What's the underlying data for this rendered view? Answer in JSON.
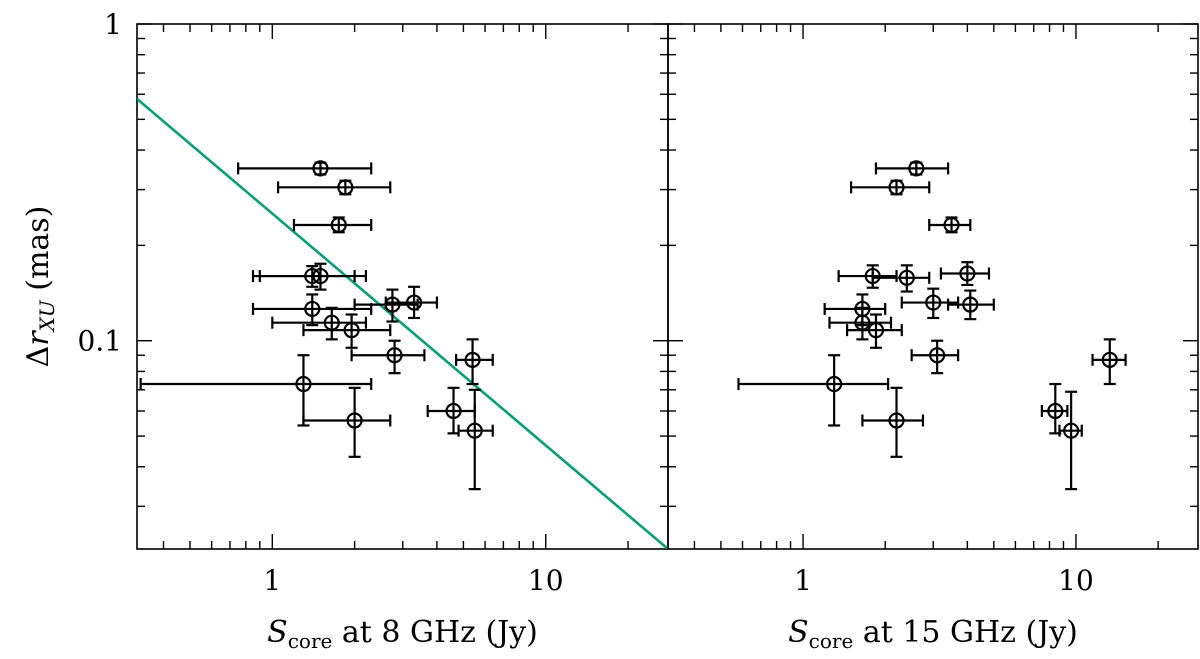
{
  "chart_data": {
    "type": "scatter",
    "yscale": "log",
    "xscale": "log",
    "ylim": [
      0.022,
      1.0
    ],
    "ylabel": {
      "main": "Δr",
      "sub": "XU",
      "unit": " (mas)"
    },
    "yticklabels": [
      {
        "value": 1,
        "label": "1"
      },
      {
        "value": 0.1,
        "label": "0.1"
      }
    ],
    "panels": [
      {
        "xlabel": {
          "main": "S",
          "sub": "core",
          "rest": " at 8 GHz (Jy)"
        },
        "xlim": [
          0.32,
          28
        ],
        "xticklabels": [
          {
            "value": 1,
            "label": "1"
          },
          {
            "value": 10,
            "label": "10"
          }
        ],
        "fit_line": {
          "color": "#0a9e75",
          "x": [
            0.32,
            28
          ],
          "y": [
            0.58,
            0.022
          ]
        },
        "points": [
          {
            "x": 1.5,
            "xlo": 0.75,
            "xhi": 2.3,
            "y": 0.35,
            "ylo": 0.335,
            "yhi": 0.365
          },
          {
            "x": 1.85,
            "xlo": 1.05,
            "xhi": 2.7,
            "y": 0.305,
            "ylo": 0.29,
            "yhi": 0.32
          },
          {
            "x": 1.75,
            "xlo": 1.2,
            "xhi": 2.3,
            "y": 0.232,
            "ylo": 0.22,
            "yhi": 0.245
          },
          {
            "x": 1.4,
            "xlo": 0.85,
            "xhi": 2.2,
            "y": 0.16,
            "ylo": 0.148,
            "yhi": 0.172
          },
          {
            "x": 1.5,
            "xlo": 0.9,
            "xhi": 2.0,
            "y": 0.16,
            "ylo": 0.145,
            "yhi": 0.175
          },
          {
            "x": 2.75,
            "xlo": 2.0,
            "xhi": 3.4,
            "y": 0.13,
            "ylo": 0.115,
            "yhi": 0.145
          },
          {
            "x": 3.3,
            "xlo": 2.6,
            "xhi": 4.0,
            "y": 0.132,
            "ylo": 0.118,
            "yhi": 0.148
          },
          {
            "x": 1.4,
            "xlo": 0.85,
            "xhi": 2.3,
            "y": 0.126,
            "ylo": 0.112,
            "yhi": 0.14
          },
          {
            "x": 1.65,
            "xlo": 1.0,
            "xhi": 2.2,
            "y": 0.114,
            "ylo": 0.101,
            "yhi": 0.127
          },
          {
            "x": 1.95,
            "xlo": 1.3,
            "xhi": 2.7,
            "y": 0.108,
            "ylo": 0.095,
            "yhi": 0.121
          },
          {
            "x": 2.8,
            "xlo": 1.95,
            "xhi": 3.6,
            "y": 0.09,
            "ylo": 0.079,
            "yhi": 0.1
          },
          {
            "x": 1.3,
            "xlo": 0.33,
            "xhi": 2.3,
            "y": 0.073,
            "ylo": 0.054,
            "yhi": 0.09
          },
          {
            "x": 5.4,
            "xlo": 4.7,
            "xhi": 6.4,
            "y": 0.087,
            "ylo": 0.073,
            "yhi": 0.101
          },
          {
            "x": 2.0,
            "xlo": 1.3,
            "xhi": 2.7,
            "y": 0.056,
            "ylo": 0.043,
            "yhi": 0.071
          },
          {
            "x": 4.6,
            "xlo": 3.7,
            "xhi": 5.5,
            "y": 0.06,
            "ylo": 0.051,
            "yhi": 0.071
          },
          {
            "x": 5.5,
            "xlo": 4.8,
            "xhi": 6.4,
            "y": 0.052,
            "ylo": 0.034,
            "yhi": 0.07
          }
        ]
      },
      {
        "xlabel": {
          "main": "S",
          "sub": "core",
          "rest": " at 15 GHz (Jy)"
        },
        "xlim": [
          0.32,
          28
        ],
        "xticklabels": [
          {
            "value": 1,
            "label": "1"
          },
          {
            "value": 10,
            "label": "10"
          }
        ],
        "points": [
          {
            "x": 2.6,
            "xlo": 1.85,
            "xhi": 3.4,
            "y": 0.35,
            "ylo": 0.335,
            "yhi": 0.365
          },
          {
            "x": 2.2,
            "xlo": 1.5,
            "xhi": 2.9,
            "y": 0.305,
            "ylo": 0.29,
            "yhi": 0.32
          },
          {
            "x": 3.5,
            "xlo": 2.9,
            "xhi": 4.1,
            "y": 0.232,
            "ylo": 0.22,
            "yhi": 0.245
          },
          {
            "x": 1.8,
            "xlo": 1.35,
            "xhi": 2.2,
            "y": 0.16,
            "ylo": 0.147,
            "yhi": 0.173
          },
          {
            "x": 2.4,
            "xlo": 1.8,
            "xhi": 2.9,
            "y": 0.158,
            "ylo": 0.143,
            "yhi": 0.173
          },
          {
            "x": 4.0,
            "xlo": 3.2,
            "xhi": 4.8,
            "y": 0.163,
            "ylo": 0.15,
            "yhi": 0.177
          },
          {
            "x": 3.0,
            "xlo": 2.3,
            "xhi": 3.7,
            "y": 0.132,
            "ylo": 0.118,
            "yhi": 0.146
          },
          {
            "x": 4.1,
            "xlo": 3.4,
            "xhi": 5.0,
            "y": 0.13,
            "ylo": 0.117,
            "yhi": 0.144
          },
          {
            "x": 1.65,
            "xlo": 1.2,
            "xhi": 2.0,
            "y": 0.126,
            "ylo": 0.112,
            "yhi": 0.14
          },
          {
            "x": 1.65,
            "xlo": 1.25,
            "xhi": 2.1,
            "y": 0.114,
            "ylo": 0.101,
            "yhi": 0.127
          },
          {
            "x": 1.85,
            "xlo": 1.45,
            "xhi": 2.3,
            "y": 0.108,
            "ylo": 0.095,
            "yhi": 0.121
          },
          {
            "x": 3.1,
            "xlo": 2.5,
            "xhi": 3.7,
            "y": 0.09,
            "ylo": 0.079,
            "yhi": 0.1
          },
          {
            "x": 1.3,
            "xlo": 0.58,
            "xhi": 2.05,
            "y": 0.073,
            "ylo": 0.054,
            "yhi": 0.09
          },
          {
            "x": 13.3,
            "xlo": 11.5,
            "xhi": 15.2,
            "y": 0.087,
            "ylo": 0.073,
            "yhi": 0.101
          },
          {
            "x": 2.2,
            "xlo": 1.65,
            "xhi": 2.75,
            "y": 0.056,
            "ylo": 0.043,
            "yhi": 0.071
          },
          {
            "x": 8.4,
            "xlo": 7.5,
            "xhi": 9.3,
            "y": 0.06,
            "ylo": 0.051,
            "yhi": 0.073
          },
          {
            "x": 9.6,
            "xlo": 8.7,
            "xhi": 10.5,
            "y": 0.052,
            "ylo": 0.034,
            "yhi": 0.069
          }
        ]
      }
    ]
  }
}
